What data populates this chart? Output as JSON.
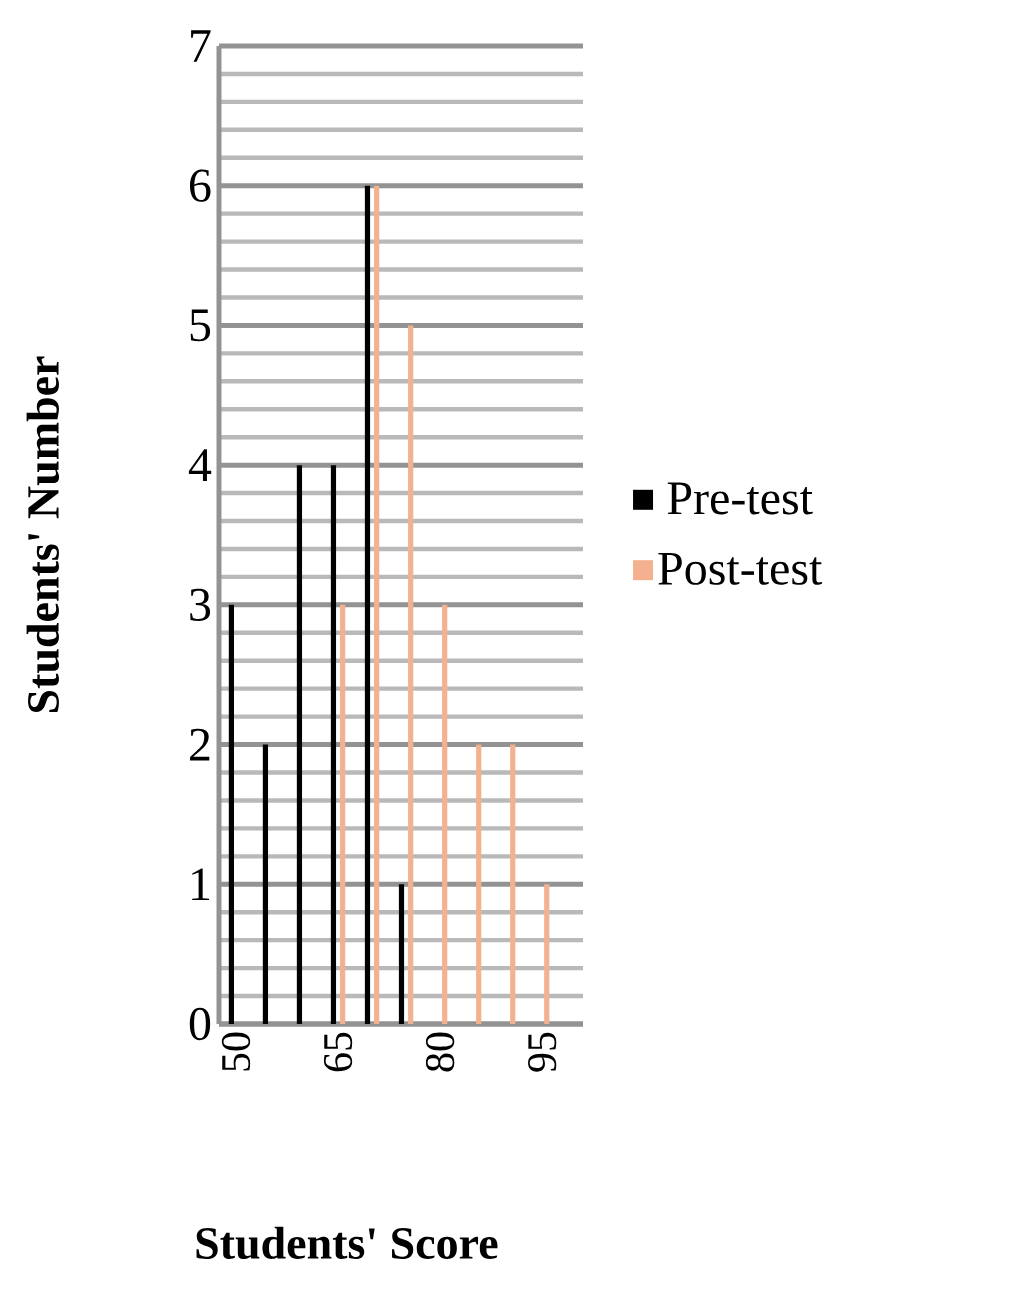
{
  "chart_data": {
    "type": "bar",
    "xlabel": "Students' Score",
    "ylabel": "Students' Number",
    "categories": [
      "50",
      null,
      null,
      "65",
      null,
      null,
      "80",
      null,
      null,
      "95"
    ],
    "series": [
      {
        "name": "Pre-test",
        "color": "#000000",
        "values": [
          3,
          2,
          4,
          4,
          6,
          1,
          0,
          0,
          0,
          0
        ]
      },
      {
        "name": "Post-test",
        "color": "#f4b18f",
        "values": [
          0,
          0,
          0,
          3,
          6,
          5,
          3,
          2,
          2,
          1
        ]
      }
    ],
    "ylim": [
      0,
      7
    ],
    "yticks": [
      0,
      1,
      2,
      3,
      4,
      5,
      6,
      7
    ],
    "grid": "y",
    "legend": "right"
  }
}
